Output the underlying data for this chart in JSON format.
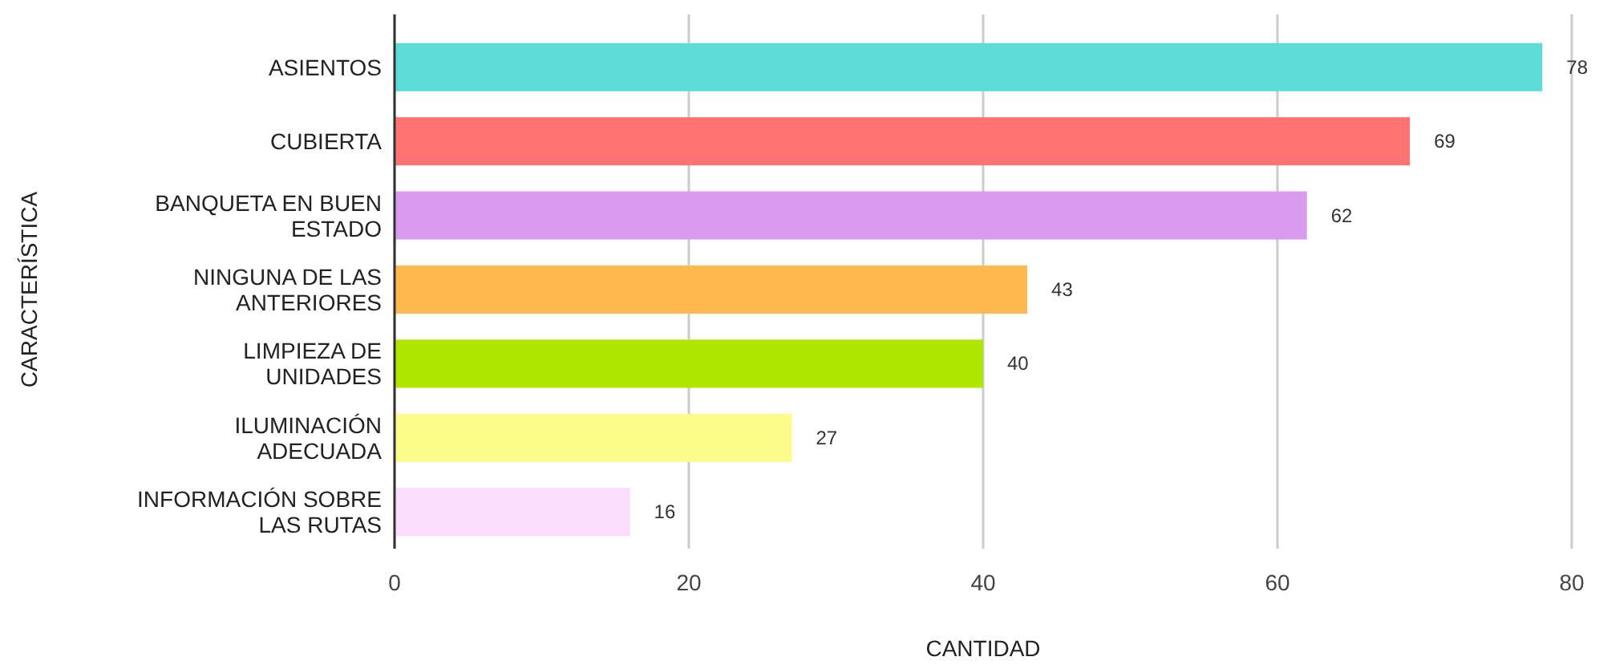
{
  "chart_data": {
    "type": "bar",
    "orientation": "horizontal",
    "xlabel": "CANTIDAD",
    "ylabel": "CARACTERÍSTICA",
    "categories": [
      "ASIENTOS",
      "CUBIERTA",
      "BANQUETA EN BUEN ESTADO",
      "NINGUNA DE LAS ANTERIORES",
      "LIMPIEZA DE UNIDADES",
      "ILUMINACIÓN ADECUADA",
      "INFORMACIÓN SOBRE LAS RUTAS"
    ],
    "values": [
      78,
      69,
      62,
      43,
      40,
      27,
      16
    ],
    "colors": [
      "#5ddbd8",
      "#ff7373",
      "#d99cef",
      "#ffb84d",
      "#aee600",
      "#fcfc8a",
      "#fcdcfc"
    ],
    "xlim": [
      0,
      80
    ],
    "xticks": [
      0,
      20,
      40,
      60,
      80
    ],
    "grid": "x",
    "data_labels": true
  }
}
